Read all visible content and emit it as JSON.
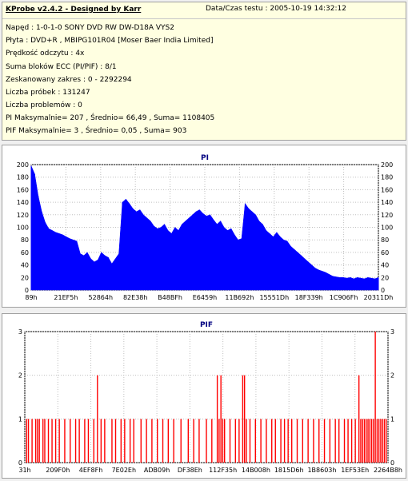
{
  "info": {
    "title": "KProbe v2.4.2 - Designed by Karr",
    "date": "Data/Czas testu : 2005-10-19 14:32:12",
    "lines": [
      "Napęd : 1-0-1-0 SONY    DVD RW DW-D18A   VYS2",
      "Płyta : DVD+R , MBIPG101R04 [Moser Baer India Limited]",
      "Prędkość odczytu : 4x",
      "Suma bloków ECC (PI/PIF) : 8/1",
      "Zeskanowany zakres : 0 - 2292294",
      "Liczba próbek : 131247",
      "Liczba problemów : 0",
      "PI Maksymalnie= 207 , Średnio= 66,49 , Suma= 1108405",
      "PIF Maksymalnie= 3 , Średnio= 0,05 , Suma= 903"
    ]
  },
  "chart_data": [
    {
      "type": "area",
      "title": "PI",
      "color": "#0000ff",
      "ylim": [
        0,
        200
      ],
      "y_ticks": [
        "0",
        "20",
        "40",
        "60",
        "80",
        "100",
        "120",
        "140",
        "160",
        "180",
        "200"
      ],
      "x_tick_labels": [
        "89h",
        "21EF5h",
        "52864h",
        "82E38h",
        "B48BFh",
        "E6459h",
        "11B692h",
        "15551Dh",
        "18F339h",
        "1C906Fh",
        "20311Dh"
      ],
      "x_range_samples": 100,
      "values": [
        198,
        185,
        150,
        125,
        108,
        98,
        95,
        92,
        90,
        88,
        85,
        82,
        80,
        78,
        58,
        55,
        60,
        50,
        45,
        48,
        60,
        55,
        52,
        42,
        50,
        58,
        140,
        145,
        138,
        130,
        125,
        128,
        120,
        115,
        110,
        102,
        98,
        100,
        105,
        95,
        90,
        100,
        95,
        105,
        110,
        115,
        120,
        125,
        128,
        122,
        118,
        120,
        112,
        105,
        110,
        100,
        95,
        98,
        88,
        80,
        82,
        138,
        130,
        125,
        120,
        110,
        105,
        95,
        90,
        85,
        92,
        85,
        80,
        78,
        70,
        65,
        60,
        55,
        50,
        45,
        40,
        35,
        32,
        30,
        28,
        25,
        22,
        21,
        20,
        20,
        19,
        20,
        18,
        20,
        19,
        18,
        20,
        19,
        18,
        20
      ]
    },
    {
      "type": "bar",
      "title": "PIF",
      "color": "#ff0000",
      "ylim": [
        0,
        3
      ],
      "y_ticks": [
        "0",
        "1",
        "2",
        "3"
      ],
      "x_tick_labels": [
        "31h",
        "209F0h",
        "4EF8Fh",
        "7E02Eh",
        "ADB09h",
        "DF38Eh",
        "112F35h",
        "14B008h",
        "1815D6h",
        "1B8603h",
        "1EF53Eh",
        "2264B8h"
      ],
      "x_range_samples": 200,
      "events": [
        [
          1,
          1
        ],
        [
          2,
          1
        ],
        [
          4,
          1
        ],
        [
          6,
          1
        ],
        [
          7,
          1
        ],
        [
          8,
          1
        ],
        [
          10,
          1
        ],
        [
          11,
          1
        ],
        [
          13,
          1
        ],
        [
          15,
          1
        ],
        [
          17,
          1
        ],
        [
          19,
          1
        ],
        [
          22,
          1
        ],
        [
          25,
          1
        ],
        [
          28,
          1
        ],
        [
          30,
          1
        ],
        [
          33,
          1
        ],
        [
          35,
          1
        ],
        [
          38,
          1
        ],
        [
          40,
          2
        ],
        [
          42,
          1
        ],
        [
          44,
          1
        ],
        [
          48,
          1
        ],
        [
          50,
          1
        ],
        [
          53,
          1
        ],
        [
          55,
          1
        ],
        [
          58,
          1
        ],
        [
          60,
          1
        ],
        [
          64,
          1
        ],
        [
          67,
          1
        ],
        [
          70,
          1
        ],
        [
          73,
          1
        ],
        [
          76,
          1
        ],
        [
          79,
          1
        ],
        [
          82,
          1
        ],
        [
          86,
          1
        ],
        [
          90,
          1
        ],
        [
          93,
          1
        ],
        [
          96,
          1
        ],
        [
          100,
          1
        ],
        [
          103,
          1
        ],
        [
          106,
          2
        ],
        [
          107,
          1
        ],
        [
          108,
          2
        ],
        [
          109,
          1
        ],
        [
          110,
          1
        ],
        [
          113,
          1
        ],
        [
          116,
          1
        ],
        [
          118,
          1
        ],
        [
          120,
          2
        ],
        [
          121,
          2
        ],
        [
          122,
          1
        ],
        [
          124,
          1
        ],
        [
          127,
          1
        ],
        [
          130,
          1
        ],
        [
          133,
          1
        ],
        [
          136,
          1
        ],
        [
          138,
          1
        ],
        [
          141,
          1
        ],
        [
          143,
          1
        ],
        [
          145,
          1
        ],
        [
          147,
          1
        ],
        [
          150,
          1
        ],
        [
          153,
          1
        ],
        [
          156,
          1
        ],
        [
          159,
          1
        ],
        [
          162,
          1
        ],
        [
          165,
          1
        ],
        [
          168,
          1
        ],
        [
          171,
          1
        ],
        [
          173,
          1
        ],
        [
          176,
          1
        ],
        [
          178,
          1
        ],
        [
          180,
          1
        ],
        [
          182,
          1
        ],
        [
          184,
          2
        ],
        [
          185,
          1
        ],
        [
          186,
          1
        ],
        [
          187,
          1
        ],
        [
          188,
          1
        ],
        [
          189,
          1
        ],
        [
          190,
          1
        ],
        [
          191,
          1
        ],
        [
          192,
          1
        ],
        [
          193,
          3
        ],
        [
          194,
          1
        ],
        [
          195,
          1
        ],
        [
          196,
          1
        ],
        [
          197,
          1
        ],
        [
          198,
          1
        ],
        [
          199,
          1
        ]
      ]
    }
  ]
}
